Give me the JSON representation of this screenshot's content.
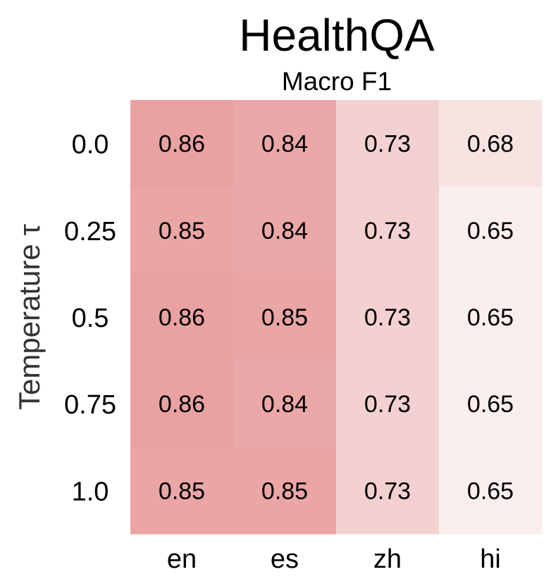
{
  "chart_data": {
    "type": "heatmap",
    "title": "HealthQA",
    "subtitle": "Macro F1",
    "ylabel": "Temperature τ",
    "xlabel": "",
    "x_categories": [
      "en",
      "es",
      "zh",
      "hi"
    ],
    "y_categories": [
      "0.0",
      "0.25",
      "0.5",
      "0.75",
      "1.0"
    ],
    "values": [
      [
        0.86,
        0.84,
        0.73,
        0.68
      ],
      [
        0.85,
        0.84,
        0.73,
        0.65
      ],
      [
        0.86,
        0.85,
        0.73,
        0.65
      ],
      [
        0.86,
        0.84,
        0.73,
        0.65
      ],
      [
        0.85,
        0.85,
        0.73,
        0.65
      ]
    ],
    "colormap": {
      "low": "#fbeeee",
      "high": "#e9a1a1"
    },
    "grid": false,
    "legend": "none"
  }
}
